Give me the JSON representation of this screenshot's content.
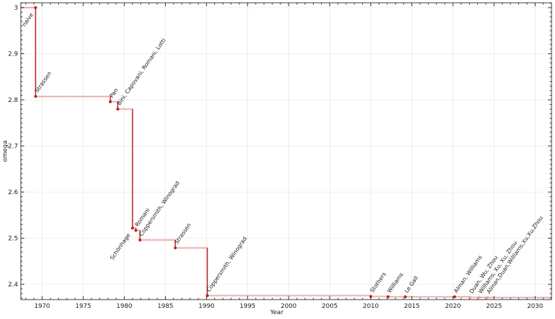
{
  "colors": {
    "step_line": "rgba(200,35,35,0.33)",
    "drop_line": "#c02020",
    "point": "#bf1f1f",
    "point_muted": "#f0a6a6",
    "label": "#1c1c1c",
    "label_muted": "#9b9b9b",
    "grid_vertical": "#ececec",
    "grid_horizontal": "#d6d6d6",
    "frame": "#3a3a3a",
    "tick": "#2a2a2a",
    "tick_text": "#1c1c1c"
  },
  "chart_data": {
    "type": "line",
    "style": "step-post",
    "title": "",
    "xlabel": "Year",
    "ylabel": "omega",
    "xlim": [
      1967.4,
      2032.0
    ],
    "ylim": [
      2.3669,
      3.0105
    ],
    "grid": true,
    "legend": "none",
    "x_major_ticks": [
      1970,
      1975,
      1980,
      1985,
      1990,
      1995,
      2000,
      2005,
      2010,
      2015,
      2020,
      2025,
      2030
    ],
    "x_minor_step": 1,
    "y_major_ticks": [
      {
        "value": 2.4,
        "label": "2.4"
      },
      {
        "value": 2.5,
        "label": "2.5"
      },
      {
        "value": 2.6,
        "label": "2.6"
      },
      {
        "value": 2.7,
        "label": "2.7"
      },
      {
        "value": 2.8,
        "label": "2.8"
      },
      {
        "value": 2.9,
        "label": "2.9"
      },
      {
        "value": 3.0,
        "label": "3"
      }
    ],
    "y_minor_step": 0.01,
    "points": [
      {
        "year": 1969.2,
        "omega": 3.0,
        "label": "naive",
        "placement": "below",
        "muted": false
      },
      {
        "year": 1969.2,
        "omega": 2.8074,
        "label": "Strassen",
        "placement": "above",
        "muted": false
      },
      {
        "year": 1978.3,
        "omega": 2.796,
        "label": "Pan",
        "placement": "above",
        "muted": false
      },
      {
        "year": 1979.2,
        "omega": 2.78,
        "label": "Bini, Capovani, Romani, Lotti",
        "placement": "above",
        "muted": false
      },
      {
        "year": 1981.0,
        "omega": 2.522,
        "label": "Schönhage",
        "placement": "below",
        "muted": false
      },
      {
        "year": 1981.4,
        "omega": 2.517,
        "label": "Romani",
        "placement": "above",
        "muted": false
      },
      {
        "year": 1981.9,
        "omega": 2.496,
        "label": "Coppersmith, Winograd",
        "placement": "above",
        "muted": false
      },
      {
        "year": 1986.2,
        "omega": 2.479,
        "label": "Strassen",
        "placement": "above",
        "muted": false
      },
      {
        "year": 1990.1,
        "omega": 2.3755,
        "label": "Coppersmith, Winograd",
        "placement": "above",
        "muted": false
      },
      {
        "year": 2010.0,
        "omega": 2.3737,
        "label": "Stothers",
        "placement": "above",
        "muted": false
      },
      {
        "year": 2012.1,
        "omega": 2.3729,
        "label": "Williams",
        "placement": "above",
        "muted": false
      },
      {
        "year": 2014.2,
        "omega": 2.3728639,
        "label": "Le Gall",
        "placement": "above",
        "muted": false
      },
      {
        "year": 2020.2,
        "omega": 2.3728596,
        "label": "Alman, Williams",
        "placement": "above",
        "muted": false
      },
      {
        "year": 2022.1,
        "omega": 2.371866,
        "label": "Duan, Wu, Zhou",
        "placement": "above",
        "muted": true
      },
      {
        "year": 2023.2,
        "omega": 2.371552,
        "label": "Williams, Xu, Xu, Zhou",
        "placement": "above",
        "muted": true
      },
      {
        "year": 2024.2,
        "omega": 2.371339,
        "label": "Alman,Duan,Williams,Xu,Xu,Zhou",
        "placement": "above",
        "muted": true
      }
    ]
  }
}
